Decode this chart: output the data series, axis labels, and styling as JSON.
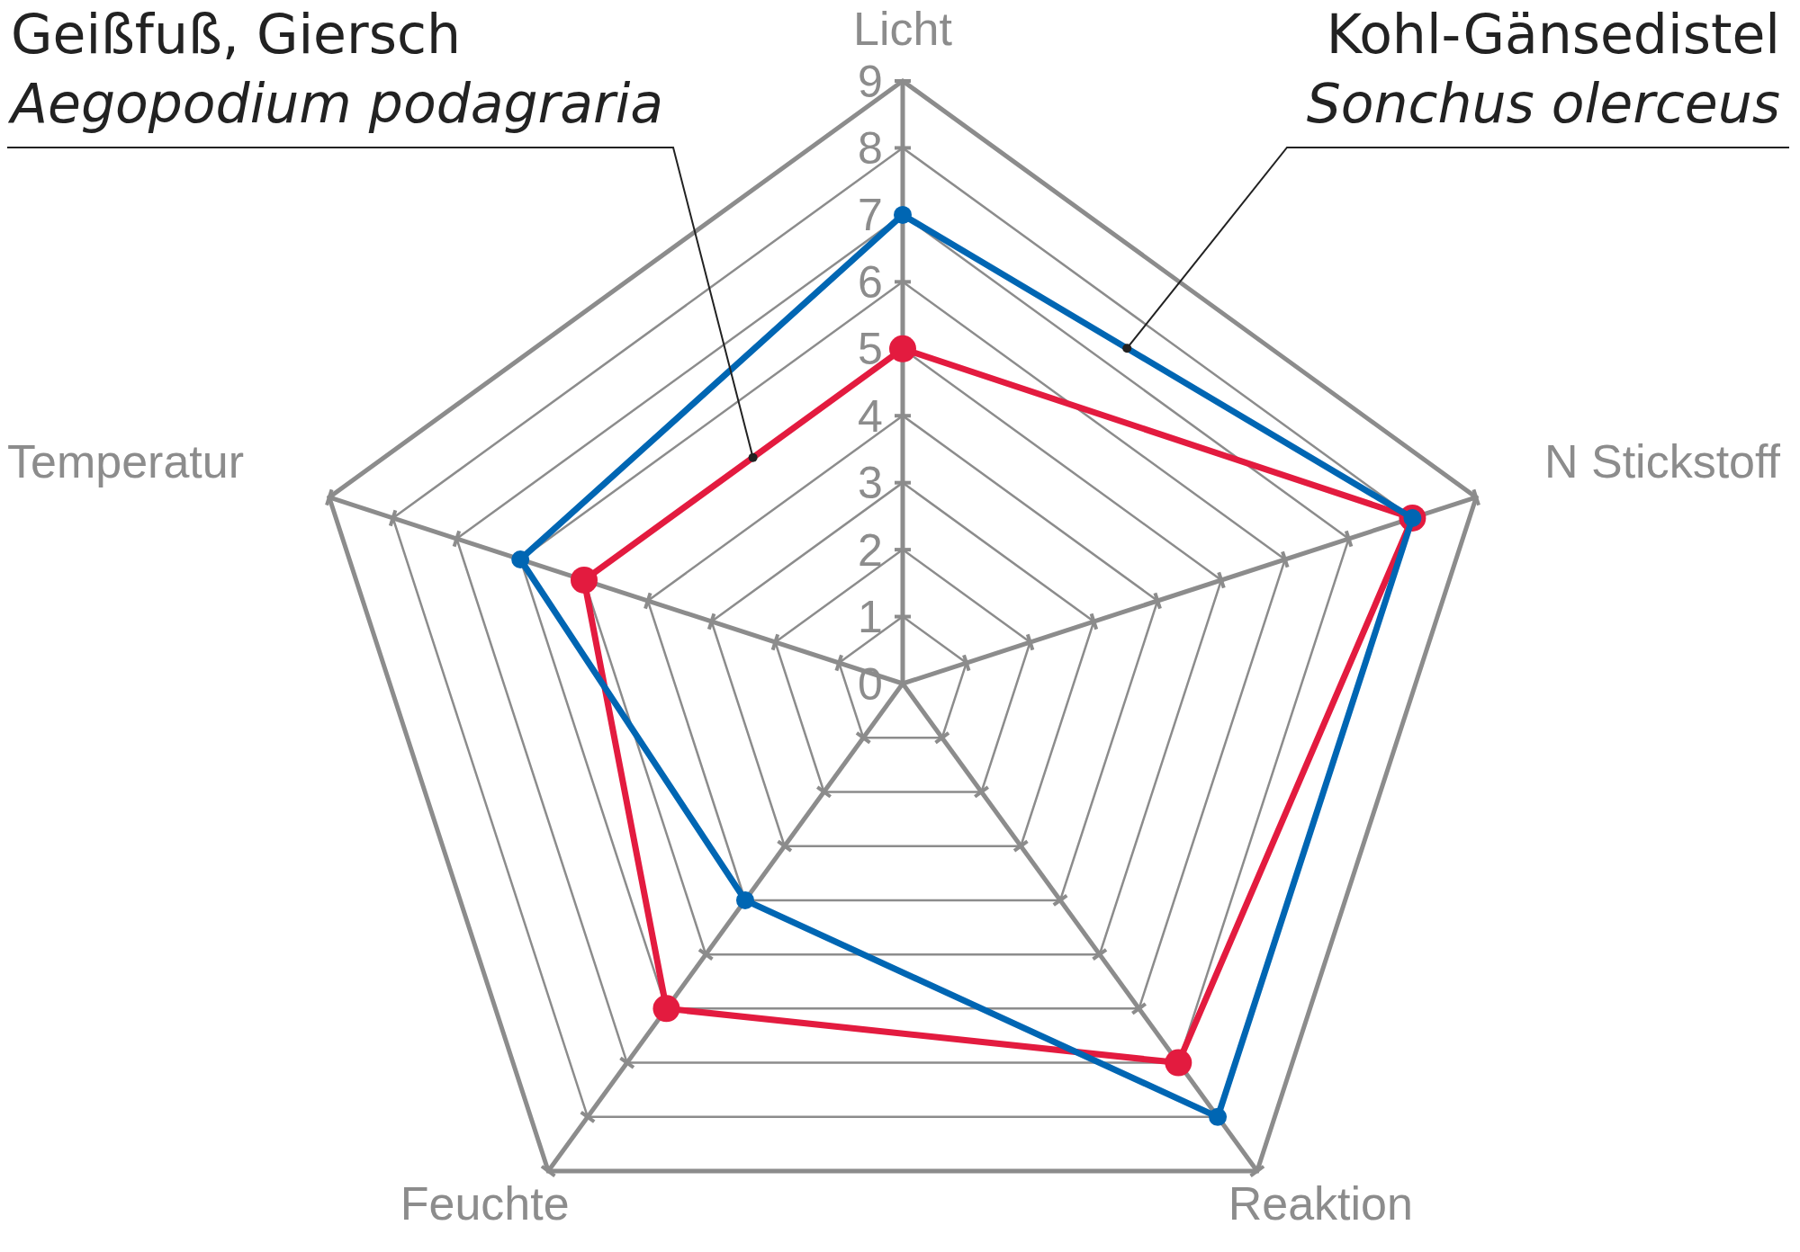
{
  "chart_data": {
    "type": "radar",
    "categories": [
      "Licht",
      "N Stickstoff",
      "Reaktion",
      "Feuchte",
      "Temperatur"
    ],
    "series": [
      {
        "name": "Geißfuß, Giersch\nAegopodium podagraria",
        "color": "#e31b3f",
        "values": [
          5,
          8,
          7,
          6,
          5
        ]
      },
      {
        "name": "Kohl-Gänsedistel\nSonchus olerceus",
        "color": "#0066b3",
        "values": [
          7,
          8,
          8,
          4,
          6
        ]
      }
    ],
    "ylim": [
      0,
      9
    ],
    "yticks": [
      0,
      1,
      2,
      3,
      4,
      5,
      6,
      7,
      8,
      9
    ],
    "grid": true,
    "marker": "circle"
  }
}
